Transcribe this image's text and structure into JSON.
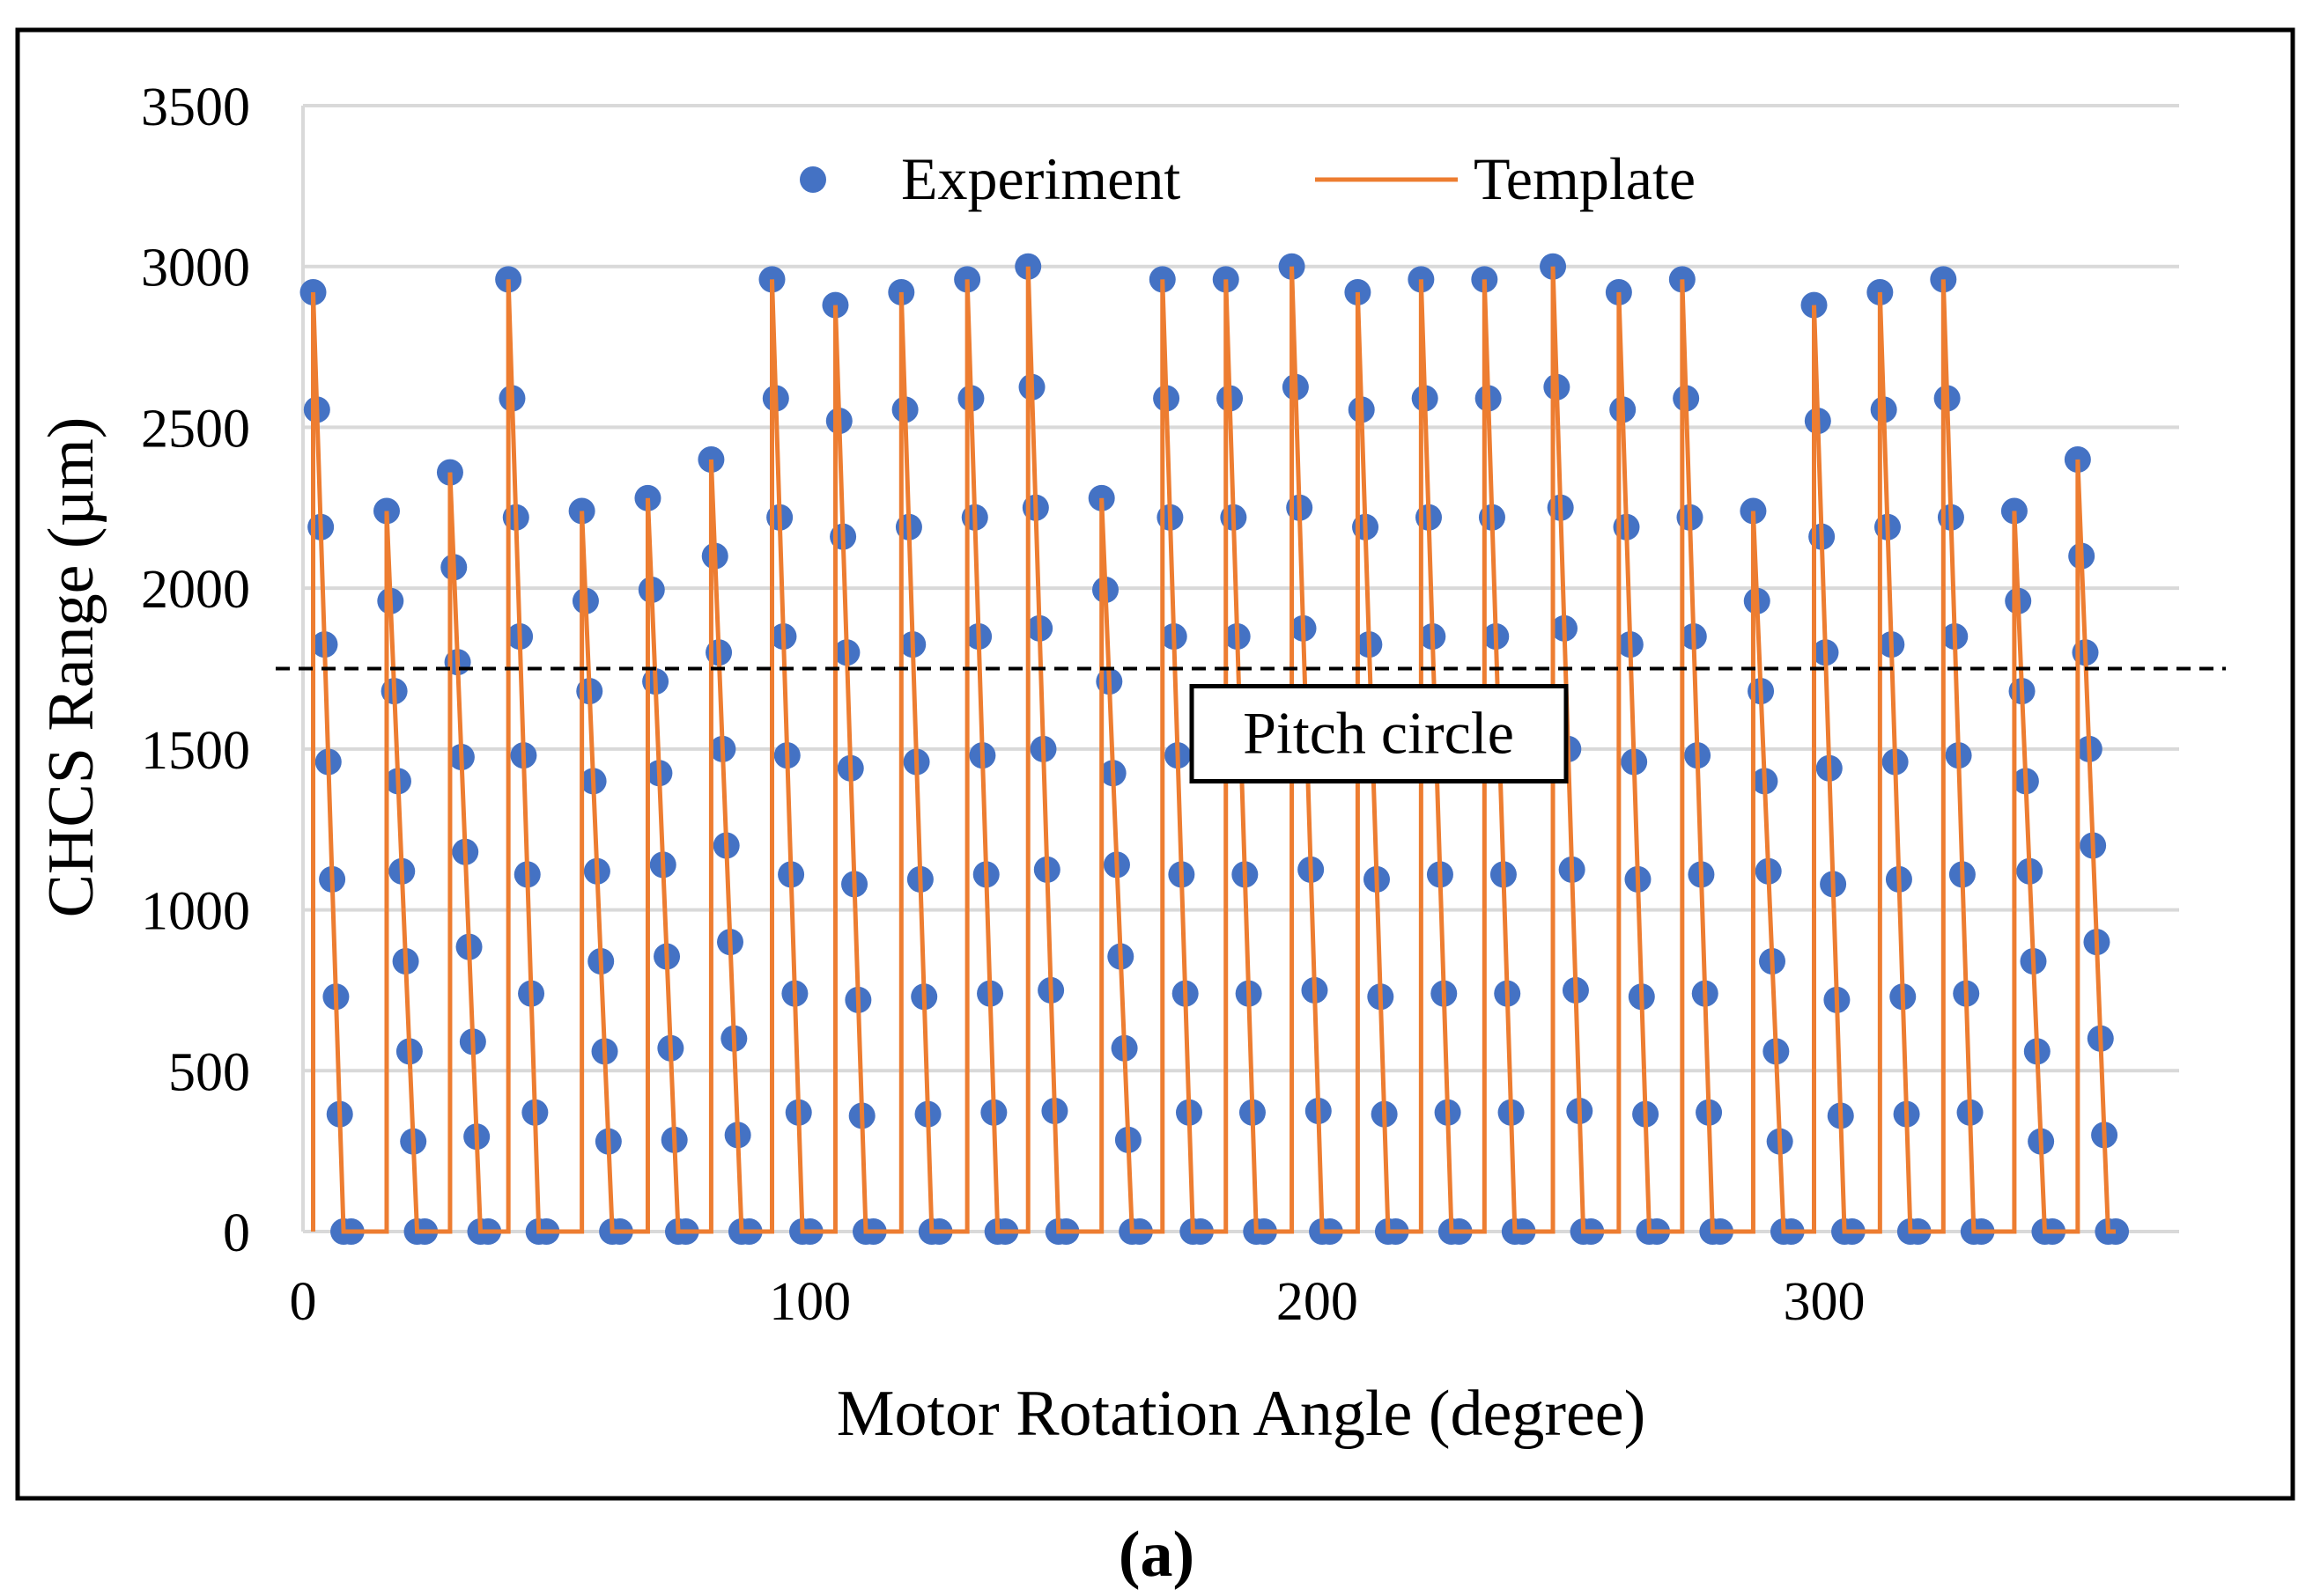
{
  "chart_data": {
    "type": "scatter-line",
    "xlabel": "Motor Rotation Angle (degree)",
    "ylabel": "CHCS Range (µm)",
    "caption": "(a)",
    "xlim": [
      0,
      370
    ],
    "xticks": [
      0,
      100,
      200,
      300
    ],
    "ylim": [
      0,
      3500
    ],
    "yticks": [
      0,
      500,
      1000,
      1500,
      2000,
      2500,
      3000,
      3500
    ],
    "grid": true,
    "legend": "top",
    "reference_line": {
      "y": 1750,
      "label": "Pitch circle"
    },
    "series": [
      {
        "name": "Experiment",
        "color": "#4472c4",
        "mode": "markers",
        "x": [
          2,
          2.75,
          3.5,
          4.25,
          5,
          5.75,
          6.5,
          7.25,
          8,
          9.5,
          16.5,
          17.25,
          18,
          18.75,
          19.5,
          20.25,
          21,
          21.75,
          22.5,
          24,
          29,
          29.75,
          30.5,
          31.25,
          32,
          32.75,
          33.5,
          34.25,
          35,
          36.5,
          40.5,
          41.25,
          42,
          42.75,
          43.5,
          44.25,
          45,
          45.75,
          46.5,
          48,
          55,
          55.75,
          56.5,
          57.25,
          58,
          58.75,
          59.5,
          60.25,
          61,
          62.5,
          68,
          68.75,
          69.5,
          70.25,
          71,
          71.75,
          72.5,
          73.25,
          74,
          75.5,
          80.5,
          81.25,
          82,
          82.75,
          83.5,
          84.25,
          85,
          85.75,
          86.5,
          88,
          92.5,
          93.25,
          94,
          94.75,
          95.5,
          96.25,
          97,
          97.75,
          98.5,
          100,
          105,
          105.75,
          106.5,
          107.25,
          108,
          108.75,
          109.5,
          110.25,
          111,
          112.5,
          118,
          118.75,
          119.5,
          120.25,
          121,
          121.75,
          122.5,
          123.25,
          124,
          125.5,
          131,
          131.75,
          132.5,
          133.25,
          134,
          134.75,
          135.5,
          136.25,
          137,
          138.5,
          143,
          143.75,
          144.5,
          145.25,
          146,
          146.75,
          147.5,
          148.25,
          149,
          150.5,
          157.5,
          158.25,
          159,
          159.75,
          160.5,
          161.25,
          162,
          162.75,
          163.5,
          165,
          169.5,
          170.25,
          171,
          171.75,
          172.5,
          173.25,
          174,
          174.75,
          175.5,
          177,
          182,
          182.75,
          183.5,
          184.25,
          185,
          185.75,
          186.5,
          187.25,
          188,
          189.5,
          195,
          195.75,
          196.5,
          197.25,
          198,
          198.75,
          199.5,
          200.25,
          201,
          202.5,
          208,
          208.75,
          209.5,
          210.25,
          211,
          211.75,
          212.5,
          213.25,
          214,
          215.5,
          220.5,
          221.25,
          222,
          222.75,
          223.5,
          224.25,
          225,
          225.75,
          226.5,
          228,
          233,
          233.75,
          234.5,
          235.25,
          236,
          236.75,
          237.5,
          238.25,
          239,
          240.5,
          246.5,
          247.25,
          248,
          248.75,
          249.5,
          250.25,
          251,
          251.75,
          252.5,
          254,
          259.5,
          260.25,
          261,
          261.75,
          262.5,
          263.25,
          264,
          264.75,
          265.5,
          267,
          272,
          272.75,
          273.5,
          274.25,
          275,
          275.75,
          276.5,
          277.25,
          278,
          279.5,
          286,
          286.75,
          287.5,
          288.25,
          289,
          289.75,
          290.5,
          291.25,
          292,
          293.5,
          298,
          298.75,
          299.5,
          300.25,
          301,
          301.75,
          302.5,
          303.25,
          304,
          305.5,
          311,
          311.75,
          312.5,
          313.25,
          314,
          314.75,
          315.5,
          316.25,
          317,
          318.5,
          323.5,
          324.25,
          325,
          325.75,
          326.5,
          327.25,
          328,
          328.75,
          329.5,
          331,
          337.5,
          338.25,
          339,
          339.75,
          340.5,
          341.25,
          342,
          342.75,
          343.5,
          345,
          350,
          350.75,
          351.5,
          352.25,
          353,
          353.75,
          354.5,
          355.25,
          356,
          357.5
        ],
        "values": [
          2920,
          2555,
          2190,
          1825,
          1460,
          1095,
          730,
          365,
          0,
          0,
          2240,
          1960,
          1680,
          1400,
          1120,
          840,
          560,
          280,
          0,
          0,
          2360,
          2065,
          1770,
          1475,
          1180,
          885,
          590,
          295,
          0,
          0,
          2960,
          2590,
          2220,
          1850,
          1480,
          1110,
          740,
          370,
          0,
          0,
          2240,
          1960,
          1680,
          1400,
          1120,
          840,
          560,
          280,
          0,
          0,
          2280,
          1995,
          1710,
          1425,
          1140,
          855,
          570,
          285,
          0,
          0,
          2400,
          2100,
          1800,
          1500,
          1200,
          900,
          600,
          300,
          0,
          0,
          2960,
          2590,
          2220,
          1850,
          1480,
          1110,
          740,
          370,
          0,
          0,
          2880,
          2520,
          2160,
          1800,
          1440,
          1080,
          720,
          360,
          0,
          0,
          2920,
          2555,
          2190,
          1825,
          1460,
          1095,
          730,
          365,
          0,
          0,
          2960,
          2590,
          2220,
          1850,
          1480,
          1110,
          740,
          370,
          0,
          0,
          3000,
          2625,
          2250,
          1875,
          1500,
          1125,
          750,
          375,
          0,
          0,
          2280,
          1995,
          1710,
          1425,
          1140,
          855,
          570,
          285,
          0,
          0,
          2960,
          2590,
          2220,
          1850,
          1480,
          1110,
          740,
          370,
          0,
          0,
          2960,
          2590,
          2220,
          1850,
          1480,
          1110,
          740,
          370,
          0,
          0,
          3000,
          2625,
          2250,
          1875,
          1500,
          1125,
          750,
          375,
          0,
          0,
          2920,
          2555,
          2190,
          1825,
          1460,
          1095,
          730,
          365,
          0,
          0,
          2960,
          2590,
          2220,
          1850,
          1480,
          1110,
          740,
          370,
          0,
          0,
          2960,
          2590,
          2220,
          1850,
          1480,
          1110,
          740,
          370,
          0,
          0,
          3000,
          2625,
          2250,
          1875,
          1500,
          1125,
          750,
          375,
          0,
          0,
          2920,
          2555,
          2190,
          1825,
          1460,
          1095,
          730,
          365,
          0,
          0,
          2960,
          2590,
          2220,
          1850,
          1480,
          1110,
          740,
          370,
          0,
          0,
          2240,
          1960,
          1680,
          1400,
          1120,
          840,
          560,
          280,
          0,
          0,
          2880,
          2520,
          2160,
          1800,
          1440,
          1080,
          720,
          360,
          0,
          0,
          2920,
          2555,
          2190,
          1825,
          1460,
          1095,
          730,
          365,
          0,
          0,
          2960,
          2590,
          2220,
          1850,
          1480,
          1110,
          740,
          370,
          0,
          0,
          2240,
          1960,
          1680,
          1400,
          1120,
          840,
          560,
          280,
          0,
          0,
          2400,
          2100,
          1800,
          1500,
          1200,
          900,
          600,
          300,
          0,
          0
        ]
      },
      {
        "name": "Template",
        "color": "#ed7d31",
        "mode": "lines",
        "x": [
          2,
          2,
          8,
          16.5,
          16.5,
          22.5,
          29,
          29,
          35,
          40.5,
          40.5,
          46.5,
          55,
          55,
          61,
          68,
          68,
          74,
          80.5,
          80.5,
          86.5,
          92.5,
          92.5,
          98.5,
          105,
          105,
          111,
          118,
          118,
          124,
          131,
          131,
          137,
          143,
          143,
          149,
          157.5,
          157.5,
          163.5,
          169.5,
          169.5,
          175.5,
          182,
          182,
          188,
          195,
          195,
          201,
          208,
          208,
          214,
          220.5,
          220.5,
          226.5,
          233,
          233,
          239,
          246.5,
          246.5,
          252.5,
          259.5,
          259.5,
          265.5,
          272,
          272,
          278,
          286,
          286,
          292,
          298,
          298,
          304,
          311,
          311,
          317,
          323.5,
          323.5,
          329.5,
          337.5,
          337.5,
          343.5,
          350,
          350,
          356,
          357.5
        ],
        "values": [
          0,
          2920,
          0,
          0,
          2240,
          0,
          0,
          2360,
          0,
          0,
          2960,
          0,
          0,
          2240,
          0,
          0,
          2280,
          0,
          0,
          2400,
          0,
          0,
          2960,
          0,
          0,
          2880,
          0,
          0,
          2920,
          0,
          0,
          2960,
          0,
          0,
          3000,
          0,
          0,
          2280,
          0,
          0,
          2960,
          0,
          0,
          2960,
          0,
          0,
          3000,
          0,
          0,
          2920,
          0,
          0,
          2960,
          0,
          0,
          2960,
          0,
          0,
          3000,
          0,
          0,
          2920,
          0,
          0,
          2960,
          0,
          0,
          2240,
          0,
          0,
          2880,
          0,
          0,
          2920,
          0,
          0,
          2960,
          0,
          0,
          2240,
          0,
          0,
          2400,
          0,
          0
        ]
      }
    ]
  }
}
